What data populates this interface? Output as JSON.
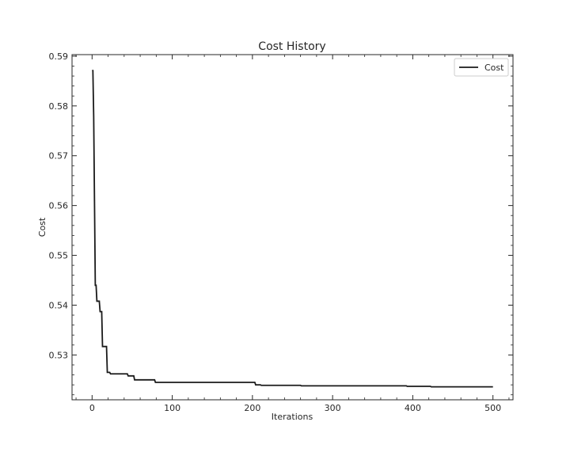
{
  "chart_data": {
    "type": "line",
    "title": "Cost History",
    "xlabel": "Iterations",
    "ylabel": "Cost",
    "xlim": [
      -25,
      525
    ],
    "ylim": [
      0.521,
      0.5903
    ],
    "xticks": [
      0,
      100,
      200,
      300,
      400,
      500
    ],
    "yticks": [
      0.53,
      0.54,
      0.55,
      0.56,
      0.57,
      0.58,
      0.59
    ],
    "grid": false,
    "legend": "top-right",
    "series": [
      {
        "name": "Cost",
        "color": "#1a1a1a",
        "step": true,
        "points": [
          [
            0,
            0.5871
          ],
          [
            1,
            0.5871
          ],
          [
            2,
            0.578
          ],
          [
            4,
            0.544
          ],
          [
            5,
            0.544
          ],
          [
            6,
            0.5408
          ],
          [
            9,
            0.5408
          ],
          [
            10,
            0.5387
          ],
          [
            12,
            0.5387
          ],
          [
            13,
            0.5317
          ],
          [
            18,
            0.5317
          ],
          [
            19,
            0.5265
          ],
          [
            22,
            0.5265
          ],
          [
            23,
            0.5262
          ],
          [
            44,
            0.5262
          ],
          [
            45,
            0.5258
          ],
          [
            52,
            0.5258
          ],
          [
            53,
            0.525
          ],
          [
            78,
            0.525
          ],
          [
            79,
            0.5245
          ],
          [
            145,
            0.5245
          ],
          [
            203,
            0.5245
          ],
          [
            204,
            0.524
          ],
          [
            210,
            0.524
          ],
          [
            211,
            0.5239
          ],
          [
            260,
            0.5239
          ],
          [
            261,
            0.5238
          ],
          [
            392,
            0.5238
          ],
          [
            393,
            0.5237
          ],
          [
            422,
            0.5237
          ],
          [
            423,
            0.5236
          ],
          [
            500,
            0.5236
          ]
        ]
      }
    ]
  }
}
